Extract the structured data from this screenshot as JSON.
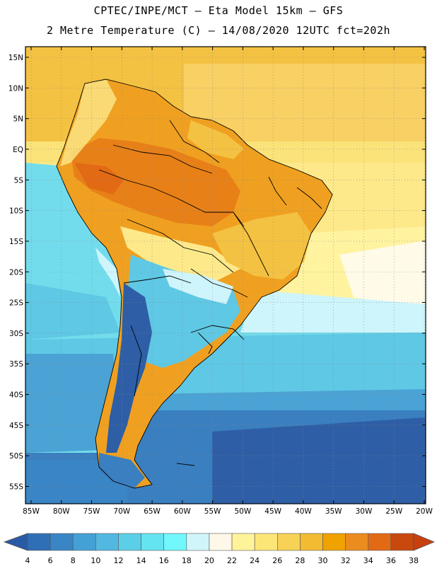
{
  "header": {
    "line1": "CPTEC/INPE/MCT –  Eta Model 15km – GFS",
    "line2": "2 Metre Temperature (C) – 14/08/2020 12UTC fct=202h"
  },
  "map": {
    "region": "South America",
    "variable": "2 metre temperature",
    "units": "C",
    "lat_labels": [
      "15N",
      "10N",
      "5N",
      "EQ",
      "5S",
      "10S",
      "15S",
      "20S",
      "25S",
      "30S",
      "35S",
      "40S",
      "45S",
      "50S",
      "55S"
    ],
    "lon_labels": [
      "85W",
      "80W",
      "75W",
      "70W",
      "65W",
      "60W",
      "55W",
      "50W",
      "45W",
      "40W",
      "35W",
      "30W",
      "25W",
      "20W"
    ],
    "grid": "dotted",
    "ocean_colors": [
      "#2e5ea6",
      "#3a7fc0",
      "#4aa3d4",
      "#5fc8e4",
      "#72dcec",
      "#cef4fc",
      "#fffbe8",
      "#fde98a",
      "#f4c242",
      "#f0a020",
      "#e88018"
    ]
  },
  "colorbar": {
    "labels": [
      "4",
      "6",
      "8",
      "10",
      "12",
      "14",
      "16",
      "18",
      "20",
      "22",
      "24",
      "26",
      "28",
      "30",
      "32",
      "34",
      "36",
      "38"
    ],
    "colors": [
      "#2a5aa5",
      "#2f6fb5",
      "#3a85c5",
      "#45a0d5",
      "#52b8e2",
      "#5ccfe8",
      "#64e4f0",
      "#70f8fc",
      "#d0f6fc",
      "#fff8e8",
      "#fff39a",
      "#fde678",
      "#f7d256",
      "#f2bb32",
      "#f0a200",
      "#eb8c1e",
      "#e26a14",
      "#c8480e",
      "#c84010"
    ]
  }
}
